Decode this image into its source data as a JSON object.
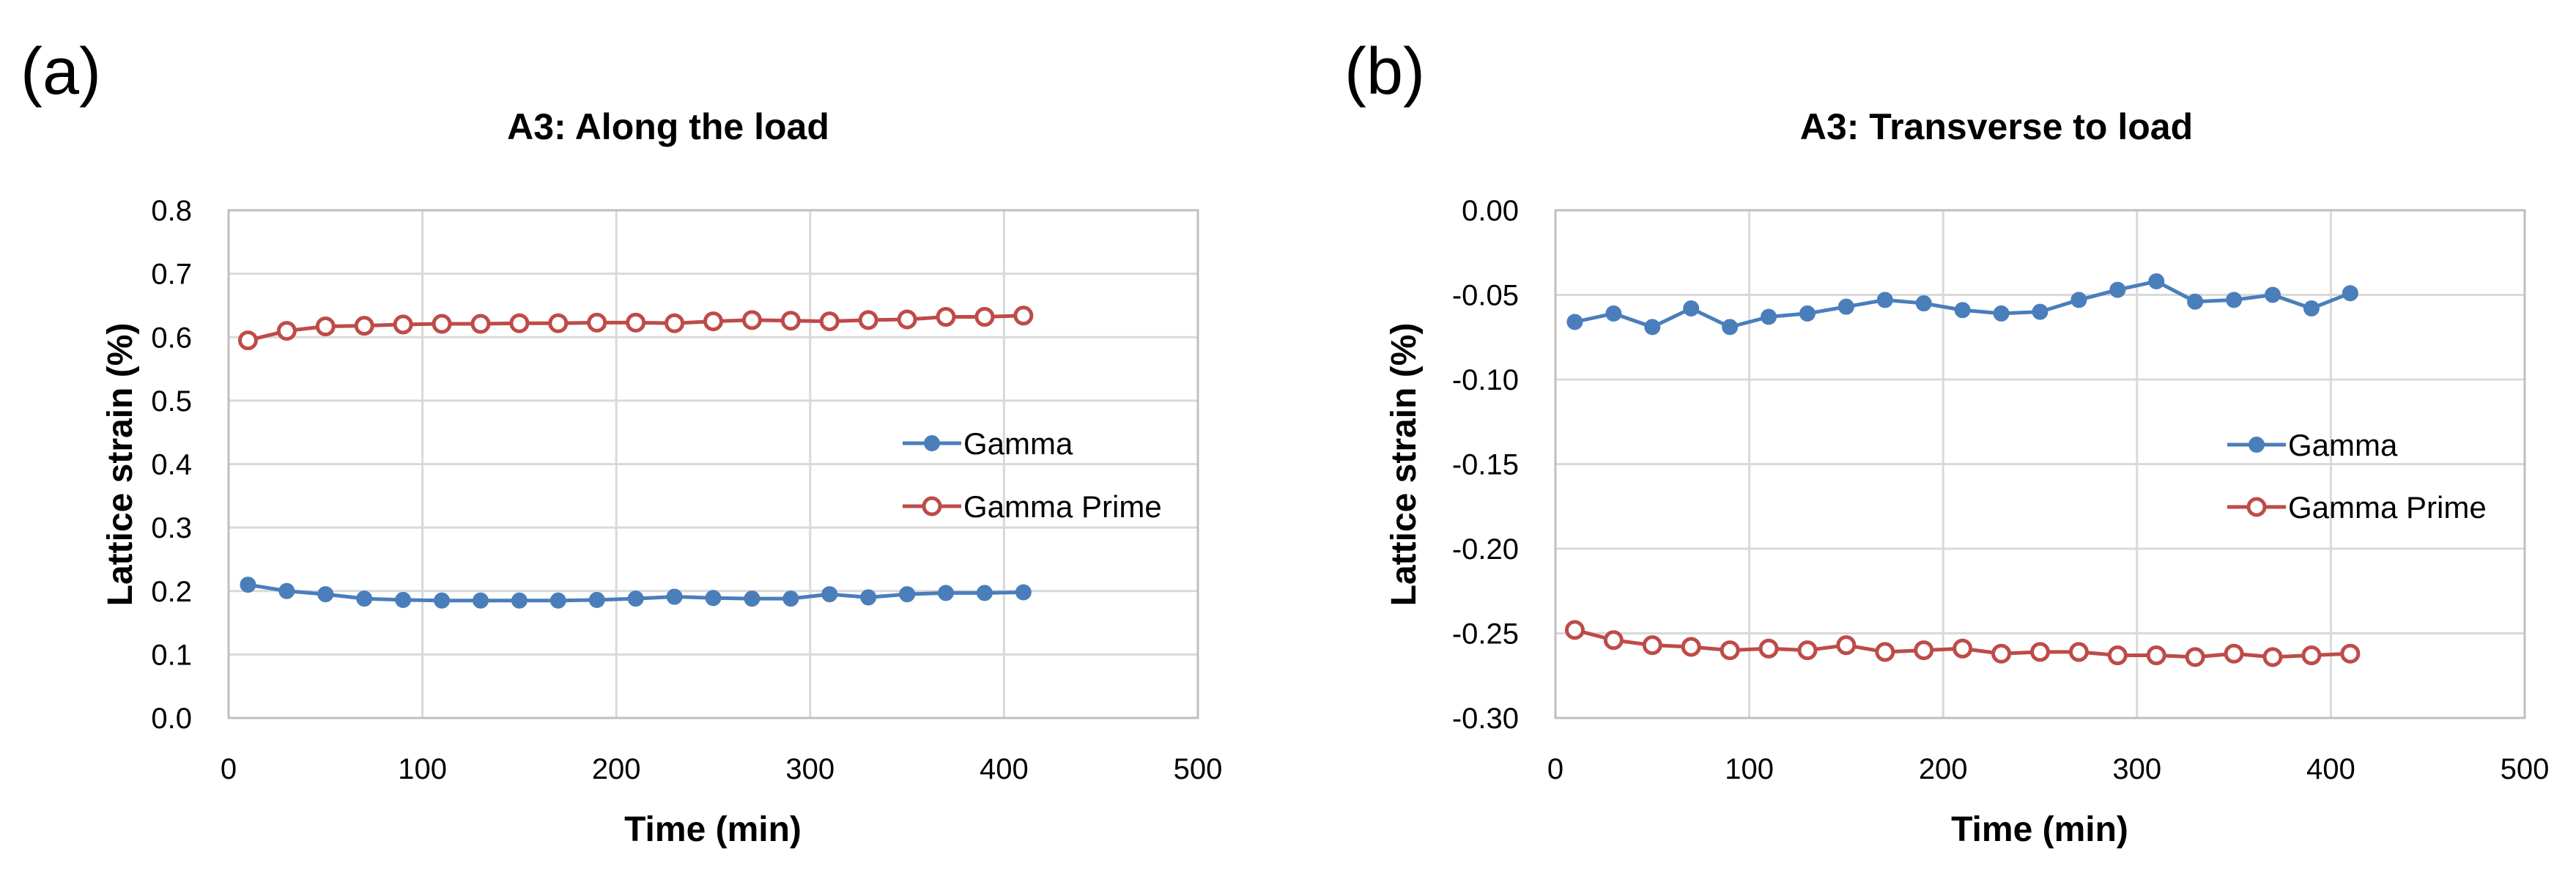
{
  "chart_data": [
    {
      "type": "line",
      "panel_label": "(a)",
      "title": "A3: Along the load",
      "xlabel": "Time (min)",
      "ylabel": "Lattice strain (%)",
      "xlim": [
        0,
        500
      ],
      "ylim": [
        0.0,
        0.8
      ],
      "xticks": [
        0,
        100,
        200,
        300,
        400,
        500
      ],
      "yticks": [
        0.0,
        0.1,
        0.2,
        0.3,
        0.4,
        0.5,
        0.6,
        0.7,
        0.8
      ],
      "x_tick_labels": [
        "0",
        "100",
        "200",
        "300",
        "400",
        "500"
      ],
      "y_tick_labels": [
        "0.0",
        "0.1",
        "0.2",
        "0.3",
        "0.4",
        "0.5",
        "0.6",
        "0.7",
        "0.8"
      ],
      "grid": true,
      "legend_position": "right",
      "x": [
        10,
        30,
        50,
        70,
        90,
        110,
        130,
        150,
        170,
        190,
        210,
        230,
        250,
        270,
        290,
        310,
        330,
        350,
        370,
        390,
        410
      ],
      "series": [
        {
          "name": "Gamma",
          "color": "#4a7ebb",
          "marker": "filled-circle",
          "values": [
            0.21,
            0.2,
            0.195,
            0.188,
            0.186,
            0.185,
            0.185,
            0.185,
            0.185,
            0.186,
            0.188,
            0.191,
            0.189,
            0.188,
            0.188,
            0.195,
            0.19,
            0.195,
            0.197,
            0.197,
            0.198
          ]
        },
        {
          "name": "Gamma Prime",
          "color": "#be4b48",
          "marker": "open-circle",
          "values": [
            0.595,
            0.61,
            0.617,
            0.618,
            0.62,
            0.621,
            0.621,
            0.622,
            0.622,
            0.623,
            0.623,
            0.622,
            0.625,
            0.627,
            0.626,
            0.625,
            0.627,
            0.628,
            0.632,
            0.632,
            0.634
          ]
        }
      ]
    },
    {
      "type": "line",
      "panel_label": "(b)",
      "title": "A3: Transverse to load",
      "xlabel": "Time (min)",
      "ylabel": "Lattice strain (%)",
      "xlim": [
        0,
        500
      ],
      "ylim": [
        -0.3,
        0.0
      ],
      "xticks": [
        0,
        100,
        200,
        300,
        400,
        500
      ],
      "yticks": [
        0.0,
        -0.05,
        -0.1,
        -0.15,
        -0.2,
        -0.25,
        -0.3
      ],
      "x_tick_labels": [
        "0",
        "100",
        "200",
        "300",
        "400",
        "500"
      ],
      "y_tick_labels": [
        "0.00",
        "-0.05",
        "-0.10",
        "-0.15",
        "-0.20",
        "-0.25",
        "-0.30"
      ],
      "grid": true,
      "legend_position": "right",
      "x": [
        10,
        30,
        50,
        70,
        90,
        110,
        130,
        150,
        170,
        190,
        210,
        230,
        250,
        270,
        290,
        310,
        330,
        350,
        370,
        390,
        410
      ],
      "series": [
        {
          "name": "Gamma",
          "color": "#4a7ebb",
          "marker": "filled-circle",
          "values": [
            -0.066,
            -0.061,
            -0.069,
            -0.058,
            -0.069,
            -0.063,
            -0.061,
            -0.057,
            -0.053,
            -0.055,
            -0.059,
            -0.061,
            -0.06,
            -0.053,
            -0.047,
            -0.042,
            -0.054,
            -0.053,
            -0.05,
            -0.058,
            -0.049
          ]
        },
        {
          "name": "Gamma Prime",
          "color": "#be4b48",
          "marker": "open-circle",
          "values": [
            -0.248,
            -0.254,
            -0.257,
            -0.258,
            -0.26,
            -0.259,
            -0.26,
            -0.257,
            -0.261,
            -0.26,
            -0.259,
            -0.262,
            -0.261,
            -0.261,
            -0.263,
            -0.263,
            -0.264,
            -0.262,
            -0.264,
            -0.263,
            -0.262
          ]
        }
      ]
    }
  ]
}
